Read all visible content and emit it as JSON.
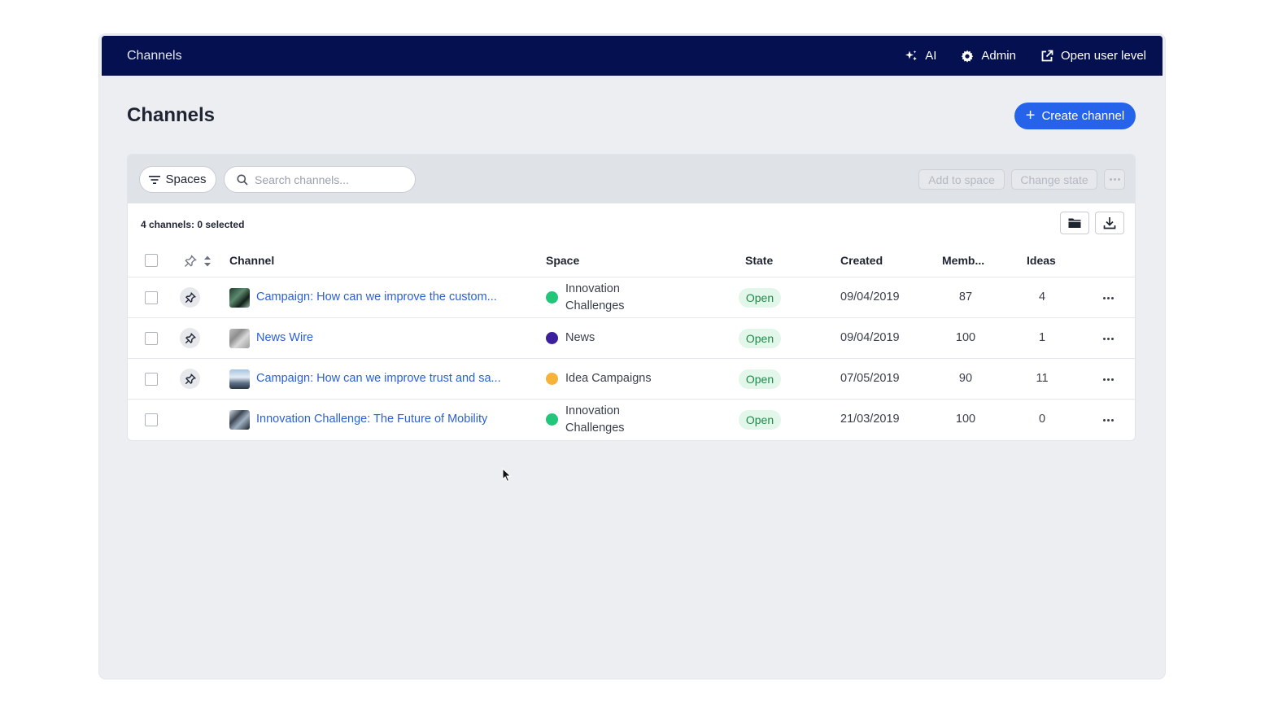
{
  "topbar": {
    "title": "Channels",
    "nav": [
      {
        "label": "AI",
        "icon": "sparkle-icon"
      },
      {
        "label": "Admin",
        "icon": "gear-icon"
      },
      {
        "label": "Open user level",
        "icon": "external-link-icon"
      }
    ],
    "background": "#041050"
  },
  "page": {
    "title": "Channels",
    "create_button": "Create channel",
    "accent": "#2563eb"
  },
  "toolbar": {
    "spaces_label": "Spaces",
    "search_placeholder": "Search channels...",
    "add_to_space": "Add to space",
    "change_state": "Change state"
  },
  "summary": {
    "count_text": "4 channels: 0 selected"
  },
  "table": {
    "headers": {
      "channel": "Channel",
      "space": "Space",
      "state": "State",
      "created": "Created",
      "members": "Memb...",
      "ideas": "Ideas"
    },
    "rows": [
      {
        "channel": "Campaign: How can we improve the custom...",
        "pinned": true,
        "space_line1": "Innovation",
        "space_line2": "Challenges",
        "space_color": "#22c67a",
        "state": "Open",
        "created": "09/04/2019",
        "members": "87",
        "ideas": "4"
      },
      {
        "channel": "News Wire",
        "pinned": true,
        "space_line1": "News",
        "space_line2": "",
        "space_color": "#3b1f9c",
        "state": "Open",
        "created": "09/04/2019",
        "members": "100",
        "ideas": "1"
      },
      {
        "channel": "Campaign: How can we improve trust and sa...",
        "pinned": true,
        "space_line1": "Idea Campaigns",
        "space_line2": "",
        "space_color": "#f7b23b",
        "state": "Open",
        "created": "07/05/2019",
        "members": "90",
        "ideas": "11"
      },
      {
        "channel": "Innovation Challenge: The Future of Mobility",
        "pinned": false,
        "space_line1": "Innovation",
        "space_line2": "Challenges",
        "space_color": "#22c67a",
        "state": "Open",
        "created": "21/03/2019",
        "members": "100",
        "ideas": "0"
      }
    ]
  }
}
